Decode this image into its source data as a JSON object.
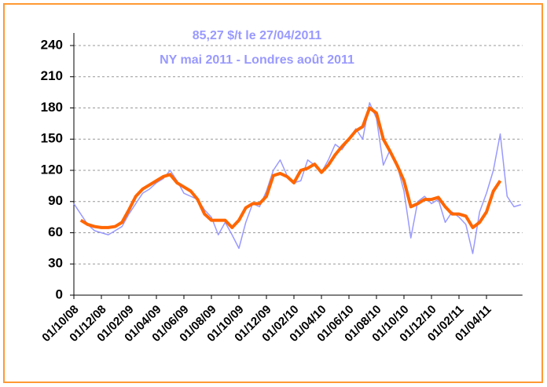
{
  "chart_data": {
    "type": "line",
    "title": "85,27 $/t le 27/04/2011",
    "subtitle": "NY mai 2011 - Londres août 2011",
    "categories": [
      "01/10/08",
      null,
      null,
      null,
      "01/12/08",
      null,
      null,
      null,
      "01/02/09",
      null,
      null,
      null,
      "01/04/09",
      null,
      null,
      null,
      "01/06/09",
      null,
      null,
      null,
      "01/08/09",
      null,
      null,
      null,
      "01/10/09",
      null,
      null,
      null,
      "01/12/09",
      null,
      null,
      null,
      "01/02/10",
      null,
      null,
      null,
      "01/04/10",
      null,
      null,
      null,
      "01/06/10",
      null,
      null,
      null,
      "01/08/10",
      null,
      null,
      null,
      "01/10/10",
      null,
      null,
      null,
      "01/12/10",
      null,
      null,
      null,
      "01/02/11",
      null,
      null,
      null,
      "01/04/11",
      null,
      null,
      null,
      null,
      null
    ],
    "series": [
      {
        "color": "#9999ff",
        "values": [
          88,
          78,
          68,
          62,
          60,
          58,
          62,
          66,
          78,
          88,
          98,
          102,
          108,
          112,
          120,
          110,
          98,
          95,
          92,
          82,
          75,
          58,
          70,
          58,
          45,
          70,
          88,
          85,
          100,
          120,
          130,
          115,
          108,
          110,
          130,
          125,
          118,
          130,
          145,
          140,
          150,
          160,
          150,
          185,
          170,
          125,
          140,
          125,
          100,
          55,
          90,
          95,
          88,
          92,
          70,
          80,
          75,
          68,
          40,
          80,
          98,
          120,
          155,
          95,
          85,
          87
        ]
      },
      {
        "color": "#ff6600",
        "values": [
          null,
          72,
          68,
          66,
          65,
          65,
          66,
          70,
          82,
          95,
          102,
          106,
          110,
          114,
          116,
          108,
          104,
          100,
          92,
          78,
          72,
          72,
          72,
          65,
          72,
          84,
          88,
          88,
          95,
          115,
          117,
          114,
          108,
          120,
          122,
          126,
          118,
          125,
          135,
          143,
          150,
          158,
          162,
          180,
          175,
          150,
          138,
          125,
          110,
          85,
          88,
          92,
          92,
          94,
          85,
          78,
          78,
          76,
          65,
          70,
          80,
          100,
          110,
          null,
          null,
          null
        ]
      }
    ],
    "ylim": [
      0,
      240
    ],
    "yticks": [
      0,
      30,
      60,
      90,
      120,
      150,
      180,
      210,
      240
    ],
    "grid": true
  }
}
